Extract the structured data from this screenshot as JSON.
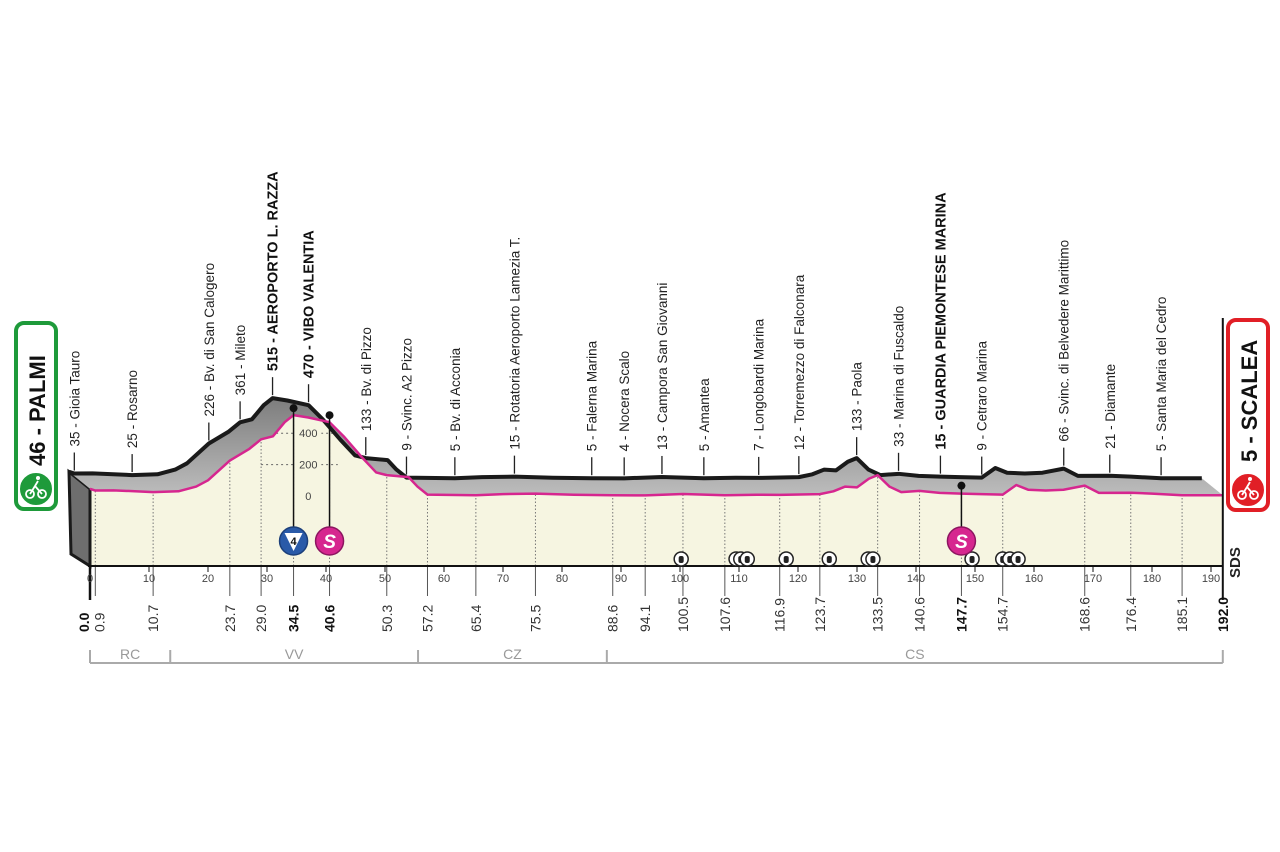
{
  "chart_data": {
    "type": "area",
    "title": "",
    "xlabel": "",
    "ylabel": "",
    "xlim": [
      0,
      192
    ],
    "x_ticks": [
      0,
      10,
      20,
      30,
      40,
      50,
      60,
      70,
      80,
      90,
      100,
      110,
      120,
      130,
      140,
      150,
      160,
      170,
      180,
      190
    ],
    "y_ticks": [
      0,
      200,
      400
    ],
    "grid": false,
    "start": {
      "label": "46 - PALMI",
      "color": "#1e9a3a"
    },
    "finish": {
      "label": "5 - SCALEA",
      "color": "#e11f26"
    },
    "profile": [
      [
        0,
        46
      ],
      [
        0.9,
        35
      ],
      [
        4,
        36
      ],
      [
        10.7,
        25
      ],
      [
        15,
        30
      ],
      [
        18,
        60
      ],
      [
        20,
        100
      ],
      [
        23.7,
        226
      ],
      [
        27,
        300
      ],
      [
        29,
        361
      ],
      [
        31,
        380
      ],
      [
        33,
        470
      ],
      [
        34.5,
        515
      ],
      [
        37,
        500
      ],
      [
        40.6,
        470
      ],
      [
        43,
        380
      ],
      [
        46,
        250
      ],
      [
        48.5,
        150
      ],
      [
        50.3,
        133
      ],
      [
        54,
        120
      ],
      [
        55.5,
        60
      ],
      [
        57.2,
        9
      ],
      [
        65.4,
        5
      ],
      [
        70,
        12
      ],
      [
        75.5,
        15
      ],
      [
        82,
        8
      ],
      [
        88.6,
        5
      ],
      [
        94.1,
        4
      ],
      [
        100.5,
        13
      ],
      [
        107.6,
        5
      ],
      [
        113,
        8
      ],
      [
        116.9,
        7
      ],
      [
        123.7,
        12
      ],
      [
        126,
        30
      ],
      [
        128,
        60
      ],
      [
        130,
        55
      ],
      [
        132,
        110
      ],
      [
        133.5,
        133
      ],
      [
        135.5,
        60
      ],
      [
        137.5,
        25
      ],
      [
        140.6,
        33
      ],
      [
        144,
        20
      ],
      [
        147.7,
        15
      ],
      [
        151,
        12
      ],
      [
        154.7,
        9
      ],
      [
        157,
        70
      ],
      [
        159,
        40
      ],
      [
        162,
        35
      ],
      [
        165,
        40
      ],
      [
        168.6,
        66
      ],
      [
        171,
        20
      ],
      [
        176.4,
        21
      ],
      [
        180,
        15
      ],
      [
        185.1,
        5
      ],
      [
        192,
        5
      ]
    ],
    "waypoints": [
      {
        "km": 0.9,
        "label": "35 - Gioia Tauro",
        "km_label": "0.9"
      },
      {
        "km": 10.7,
        "label": "25 - Rosarno",
        "km_label": "10.7"
      },
      {
        "km": 23.7,
        "label": "226 - Bv. di San Calogero",
        "km_label": "23.7"
      },
      {
        "km": 29.0,
        "label": "361 - Mileto",
        "km_label": "29.0"
      },
      {
        "km": 34.5,
        "label": "515 - AEROPORTO L. RAZZA",
        "km_label": "34.5",
        "bold": true
      },
      {
        "km": 40.6,
        "label": "470 - VIBO VALENTIA",
        "km_label": "40.6",
        "bold": true
      },
      {
        "km": 50.3,
        "label": "133 - Bv. di Pizzo",
        "km_label": "50.3"
      },
      {
        "km": 57.2,
        "label": "9 - Svinc. A2 Pizzo",
        "km_label": "57.2"
      },
      {
        "km": 65.4,
        "label": "5 - Bv. di Acconia",
        "km_label": "65.4"
      },
      {
        "km": 75.5,
        "label": "15 - Rotatoria  Aeroporto Lamezia T.",
        "km_label": "75.5"
      },
      {
        "km": 88.6,
        "label": "5 - Falerna Marina",
        "km_label": "88.6"
      },
      {
        "km": 94.1,
        "label": "4 - Nocera Scalo",
        "km_label": "94.1"
      },
      {
        "km": 100.5,
        "label": "13 - Campora San Giovanni",
        "km_label": "100.5"
      },
      {
        "km": 107.6,
        "label": "5 - Amantea",
        "km_label": "107.6"
      },
      {
        "km": 116.9,
        "label": "7 - Longobardi Marina",
        "km_label": "116.9"
      },
      {
        "km": 123.7,
        "label": "12 - Torremezzo di Falconara",
        "km_label": "123.7"
      },
      {
        "km": 133.5,
        "label": "133 - Paola",
        "km_label": "133.5"
      },
      {
        "km": 140.6,
        "label": "33 - Marina di Fuscaldo",
        "km_label": "140.6"
      },
      {
        "km": 147.7,
        "label": "15 - GUARDIA PIEMONTESE MARINA",
        "km_label": "147.7",
        "bold": true
      },
      {
        "km": 154.7,
        "label": "9 - Cetraro Marina",
        "km_label": "154.7"
      },
      {
        "km": 168.6,
        "label": "66 - Svinc. di Belvedere Marittimo",
        "km_label": "168.6"
      },
      {
        "km": 176.4,
        "label": "21 - Diamante",
        "km_label": "176.4"
      },
      {
        "km": 185.1,
        "label": "5 - Santa Maria del Cedro",
        "km_label": "185.1"
      }
    ],
    "km_start_label": "0.0",
    "km_finish_label": "192.0",
    "kom": [
      {
        "km": 34.5,
        "category": "4",
        "color": "#2a5aa8"
      }
    ],
    "sprints": [
      {
        "km": 40.6,
        "symbol": "S"
      },
      {
        "km": 147.7,
        "symbol": "S"
      }
    ],
    "sprint_color": "#d6268f",
    "tunnels_km": [
      100.2,
      109.5,
      110.3,
      111.4,
      118.0,
      125.3,
      131.9,
      132.7,
      149.5,
      154.7,
      155.9,
      157.3
    ],
    "provinces": [
      {
        "label": "RC",
        "from": 0,
        "to": 13.6
      },
      {
        "label": "VV",
        "from": 13.6,
        "to": 55.6
      },
      {
        "label": "CZ",
        "from": 55.6,
        "to": 87.6
      },
      {
        "label": "CS",
        "from": 87.6,
        "to": 192
      }
    ],
    "sponsor_mark": "SDS",
    "colors": {
      "profile_line": "#d6268f",
      "area_fill": "#f6f5e1",
      "ridge": "#1a1a1a",
      "band": "#9a9a9a"
    }
  }
}
